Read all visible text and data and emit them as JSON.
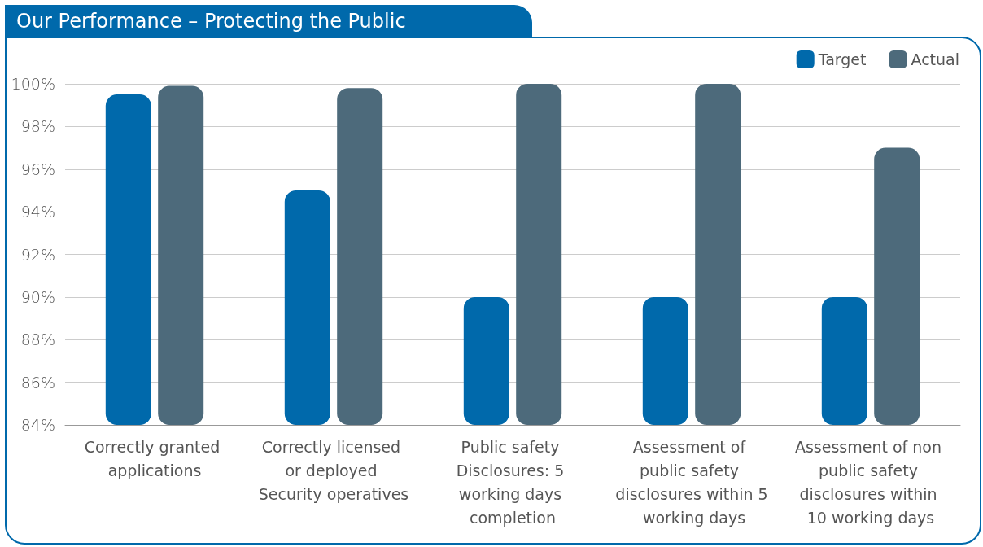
{
  "chart_data": {
    "type": "bar",
    "title": "Our Performance – Protecting the Public",
    "categories": [
      "Correctly granted applications",
      "Correctly licensed or deployed Security operatives",
      "Public safety Disclosures: 5 working days completion",
      "Assessment of public safety disclosures within 5 working days",
      "Assessment of non public safety disclosures within 10 working days"
    ],
    "series": [
      {
        "name": "Target",
        "color": "#0069ab",
        "values": [
          99.5,
          95,
          90,
          90,
          90
        ]
      },
      {
        "name": "Actual",
        "color": "#4d6a7b",
        "values": [
          99.9,
          99.8,
          100,
          100,
          97
        ]
      }
    ],
    "ylim": [
      84,
      100
    ],
    "yticks": [
      {
        "value": 84,
        "label": "84%"
      },
      {
        "value": 86,
        "label": "86%"
      },
      {
        "value": 88,
        "label": "88%"
      },
      {
        "value": 90,
        "label": "90%"
      },
      {
        "value": 92,
        "label": "92%"
      },
      {
        "value": 94,
        "label": "94%"
      },
      {
        "value": 96,
        "label": "96%"
      },
      {
        "value": 98,
        "label": "98%"
      },
      {
        "value": 100,
        "label": "100%"
      }
    ],
    "grid": "y",
    "legend": "top right"
  }
}
